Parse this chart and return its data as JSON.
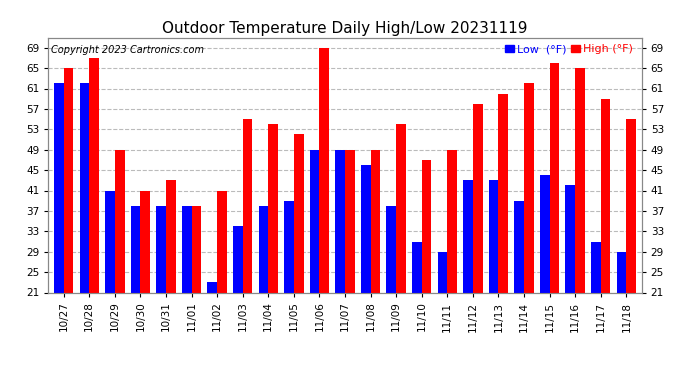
{
  "title": "Outdoor Temperature Daily High/Low 20231119",
  "copyright": "Copyright 2023 Cartronics.com",
  "legend_low": "Low",
  "legend_high": "High",
  "legend_unit": "(°F)",
  "categories": [
    "10/27",
    "10/28",
    "10/29",
    "10/30",
    "10/31",
    "11/01",
    "11/02",
    "11/03",
    "11/04",
    "11/05",
    "11/06",
    "11/07",
    "11/08",
    "11/09",
    "11/10",
    "11/11",
    "11/12",
    "11/13",
    "11/14",
    "11/15",
    "11/16",
    "11/17",
    "11/18"
  ],
  "high_values": [
    65.0,
    67.0,
    49.0,
    41.0,
    43.0,
    38.0,
    41.0,
    55.0,
    54.0,
    52.0,
    69.0,
    49.0,
    49.0,
    54.0,
    47.0,
    49.0,
    58.0,
    60.0,
    62.0,
    66.0,
    65.0,
    59.0,
    55.0
  ],
  "low_values": [
    62.0,
    62.0,
    41.0,
    38.0,
    38.0,
    38.0,
    23.0,
    34.0,
    38.0,
    39.0,
    49.0,
    49.0,
    46.0,
    38.0,
    31.0,
    29.0,
    43.0,
    43.0,
    39.0,
    44.0,
    42.0,
    31.0,
    29.0
  ],
  "high_color": "#ff0000",
  "low_color": "#0000ff",
  "bg_color": "#ffffff",
  "grid_color": "#bbbbbb",
  "ylim_min": 21.0,
  "ylim_max": 71.0,
  "yticks": [
    21.0,
    25.0,
    29.0,
    33.0,
    37.0,
    41.0,
    45.0,
    49.0,
    53.0,
    57.0,
    61.0,
    65.0,
    69.0
  ],
  "title_fontsize": 11,
  "copyright_fontsize": 7,
  "tick_fontsize": 7.5,
  "legend_fontsize": 8
}
